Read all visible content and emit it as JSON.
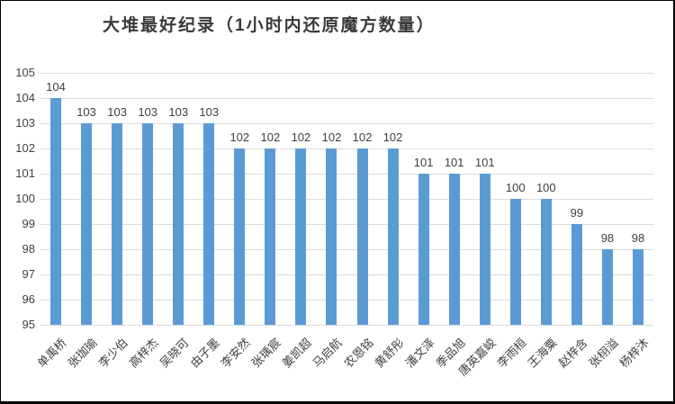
{
  "chart_data": {
    "type": "bar",
    "title": "大堆最好纪录（1小时内还原魔方数量）",
    "categories": [
      "单禹桥",
      "张珈瑜",
      "李少伯",
      "高梓杰",
      "吴晓可",
      "由子墨",
      "李安然",
      "张瑀宸",
      "姜凯超",
      "马启航",
      "农恩铭",
      "黄舒彤",
      "潘文泽",
      "季品旭",
      "唐英嘉峻",
      "李雨桓",
      "王海粟",
      "赵梓含",
      "张栩溢",
      "杨梓沐"
    ],
    "values": [
      104,
      103,
      103,
      103,
      103,
      103,
      102,
      102,
      102,
      102,
      102,
      102,
      101,
      101,
      101,
      100,
      100,
      99,
      98,
      98
    ],
    "xlabel": "",
    "ylabel": "",
    "ylim": [
      95,
      105
    ],
    "ytick_step": 1,
    "yticks": [
      95,
      96,
      97,
      98,
      99,
      100,
      101,
      102,
      103,
      104,
      105
    ],
    "grid": true,
    "data_labels": true,
    "legend_position": "none",
    "x_label_rotation_deg": 45
  },
  "colors": {
    "bar": "#5b9bd5",
    "gridline": "#dcdcdc",
    "axis_text": "#3f3f3f",
    "title_text": "#3a3a3a",
    "background": "#ffffff",
    "border": "#000000"
  }
}
